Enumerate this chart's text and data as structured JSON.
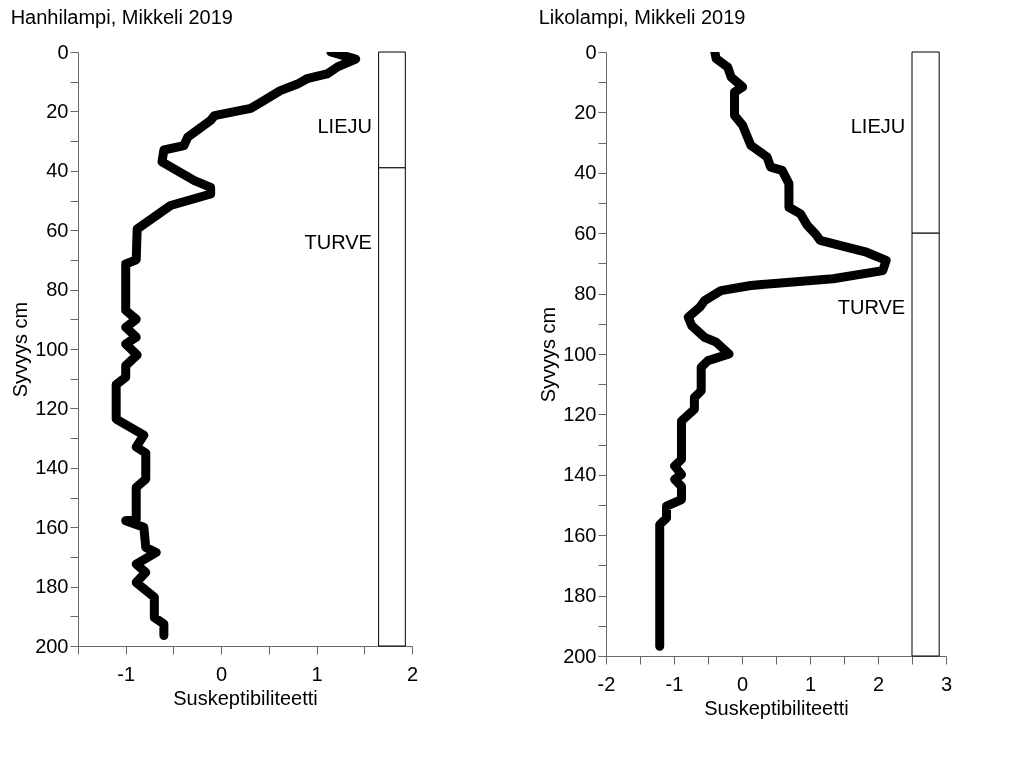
{
  "chart_data": [
    {
      "type": "line",
      "title": "Hanhilampi, Mikkeli 2019",
      "xlabel": "Suskeptibiliteetti",
      "ylabel": "Syvyys cm",
      "series": [
        {
          "color": "#000000",
          "x": [
            1.15,
            1.41,
            1.22,
            1.11,
            0.9,
            0.8,
            0.62,
            0.31,
            -0.07,
            -0.11,
            -0.35,
            -0.39,
            -0.6,
            -0.62,
            -0.28,
            -0.11,
            -0.11,
            -0.53,
            -0.88,
            -0.89,
            -1.0,
            -1.0,
            -0.89,
            -1.0,
            -0.89,
            -1.0,
            -0.88,
            -1.0,
            -1.0,
            -1.1,
            -1.1,
            -0.81,
            -0.89,
            -0.79,
            -0.79,
            -0.89,
            -0.89,
            -1.0,
            -0.81,
            -0.79,
            -0.68,
            -0.89,
            -0.79,
            -0.89,
            -0.7,
            -0.7,
            -0.6,
            -0.6
          ],
          "values": [
            0,
            2.4,
            5,
            7.4,
            9,
            10.8,
            13,
            19,
            21.4,
            23,
            28.7,
            31.5,
            33,
            37,
            43.3,
            45.6,
            47.8,
            51.7,
            59.6,
            70,
            71.4,
            87,
            90,
            92.7,
            96,
            98.3,
            102,
            105.6,
            109.5,
            112,
            123.6,
            129,
            133,
            135,
            143.8,
            146.6,
            157.2,
            157.8,
            160,
            166.8,
            168.5,
            172.4,
            175.2,
            178.6,
            183.6,
            190.4,
            192.6,
            196.5
          ]
        }
      ],
      "bands": [
        {
          "axis": "y",
          "from": 0,
          "to": 39,
          "label": "LIEJU"
        },
        {
          "axis": "y",
          "from": 39,
          "to": 200,
          "label": "TURVE"
        }
      ],
      "xlim": [
        -1.5,
        2
      ],
      "xticks": [
        {
          "value": -1.5,
          "label": null
        },
        -1,
        {
          "value": -0.5,
          "label": null
        },
        0,
        {
          "value": 0.5,
          "label": null
        },
        1,
        {
          "value": 1.5,
          "label": null
        },
        2
      ],
      "ylim": [
        200,
        0
      ],
      "yticks": [
        0,
        {
          "value": 10,
          "label": null
        },
        20,
        {
          "value": 30,
          "label": null
        },
        40,
        {
          "value": 50,
          "label": null
        },
        60,
        {
          "value": 70,
          "label": null
        },
        80,
        {
          "value": 90,
          "label": null
        },
        100,
        {
          "value": 110,
          "label": null
        },
        120,
        {
          "value": 130,
          "label": null
        },
        140,
        {
          "value": 150,
          "label": null
        },
        160,
        {
          "value": 170,
          "label": null
        },
        180,
        {
          "value": 190,
          "label": null
        },
        200
      ]
    },
    {
      "type": "line",
      "title": "Likolampi, Mikkeli 2019",
      "xlabel": "Suskeptibiliteetti",
      "ylabel": "Syvyys cm",
      "series": [
        {
          "color": "#000000",
          "x": [
            -0.4,
            -0.38,
            -0.21,
            -0.16,
            0.01,
            -0.11,
            -0.11,
            0.01,
            0.08,
            0.13,
            0.37,
            0.42,
            0.59,
            0.69,
            0.69,
            0.86,
            0.96,
            1.08,
            1.15,
            1.83,
            2.12,
            2.07,
            1.34,
            0.13,
            -0.31,
            -0.55,
            -0.62,
            -0.79,
            -0.74,
            -0.55,
            -0.38,
            -0.19,
            -0.5,
            -0.6,
            -0.6,
            -0.7,
            -0.7,
            -0.89,
            -0.89,
            -0.99,
            -0.89,
            -0.99,
            -0.89,
            -0.89,
            -1.11,
            -1.11,
            -1.21,
            -1.21
          ],
          "values": [
            0,
            2.2,
            5,
            8.3,
            11.6,
            13.3,
            21,
            24.3,
            28.2,
            30.9,
            34.8,
            38.1,
            39.2,
            43.6,
            51.4,
            53.6,
            57.4,
            60.2,
            62.4,
            66.3,
            69,
            72.4,
            75.1,
            77.3,
            79,
            82.3,
            84.5,
            87.8,
            90.6,
            94.5,
            96.1,
            100,
            102.2,
            104.4,
            112.2,
            114.4,
            118.3,
            122.2,
            134.9,
            137.1,
            139.9,
            141.5,
            143.8,
            148.2,
            150.4,
            154.3,
            156.5,
            196.8
          ]
        }
      ],
      "bands": [
        {
          "axis": "y",
          "from": 0,
          "to": 60,
          "label": "LIEJU"
        },
        {
          "axis": "y",
          "from": 60,
          "to": 200,
          "label": "TURVE"
        }
      ],
      "xlim": [
        -2,
        3
      ],
      "xticks": [
        -2,
        {
          "value": -1.5,
          "label": null
        },
        -1,
        {
          "value": -0.5,
          "label": null
        },
        0,
        {
          "value": 0.5,
          "label": null
        },
        1,
        {
          "value": 1.5,
          "label": null
        },
        2,
        {
          "value": 2.5,
          "label": null
        },
        3
      ],
      "ylim": [
        200,
        0
      ],
      "yticks": [
        0,
        {
          "value": 10,
          "label": null
        },
        20,
        {
          "value": 30,
          "label": null
        },
        40,
        {
          "value": 50,
          "label": null
        },
        60,
        {
          "value": 70,
          "label": null
        },
        80,
        {
          "value": 90,
          "label": null
        },
        100,
        {
          "value": 110,
          "label": null
        },
        120,
        {
          "value": 130,
          "label": null
        },
        140,
        {
          "value": 150,
          "label": null
        },
        160,
        {
          "value": 170,
          "label": null
        },
        180,
        {
          "value": 190,
          "label": null
        },
        200
      ]
    }
  ]
}
